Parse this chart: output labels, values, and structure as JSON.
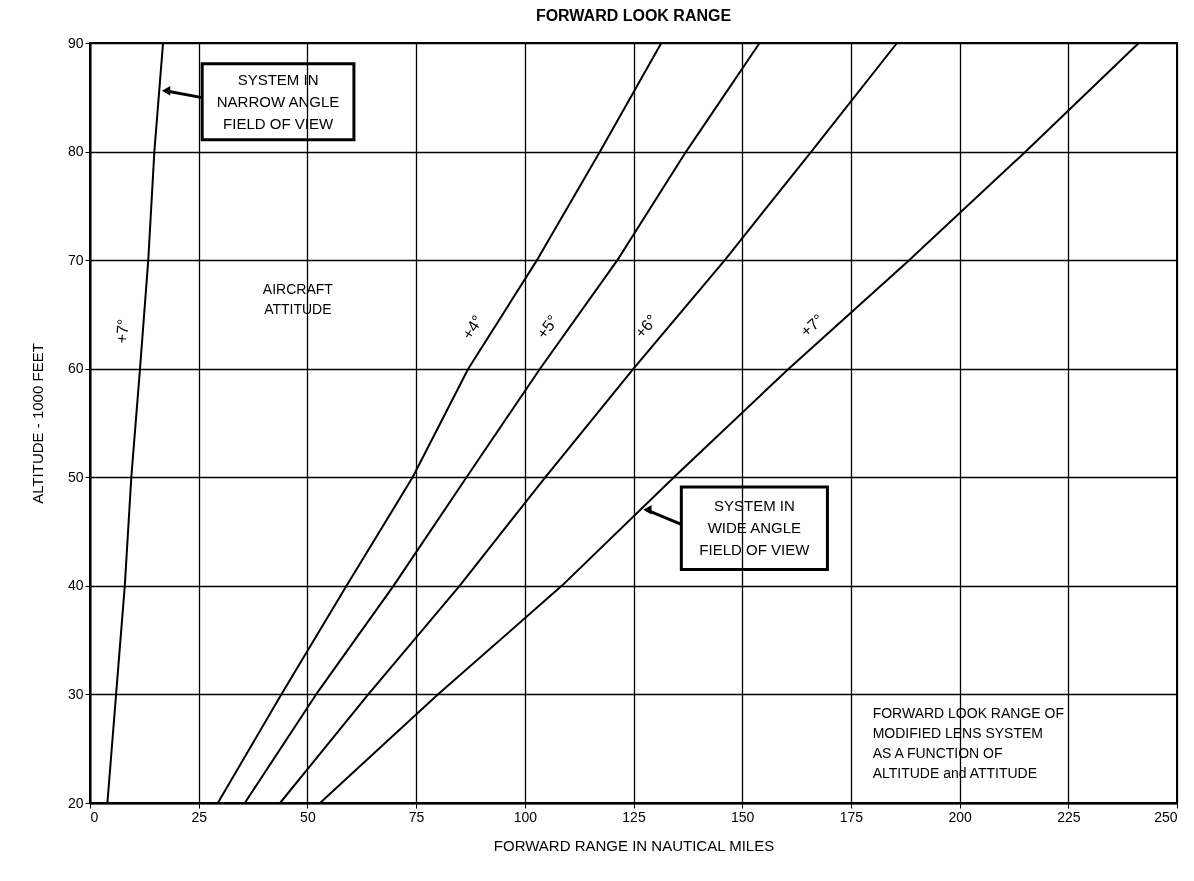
{
  "chart_data": {
    "type": "line",
    "title": "FORWARD LOOK RANGE",
    "xlabel": "FORWARD RANGE IN NAUTICAL MILES",
    "ylabel": "ALTITUDE - 1000 FEET",
    "series": [
      {
        "name": "+7°",
        "color": "#000000",
        "x": [
          4,
          6,
          8,
          9.5,
          11.5,
          13.4,
          14.8,
          16.8
        ],
        "values": [
          20,
          30,
          40,
          50,
          60,
          70,
          80,
          90
        ]
      },
      {
        "name": "+4°",
        "color": "#000000",
        "x": [
          29.4,
          44,
          59,
          74.2,
          87,
          102.8,
          117.3,
          131.4
        ],
        "values": [
          20,
          30,
          40,
          50,
          60,
          70,
          80,
          90
        ]
      },
      {
        "name": "+5°",
        "color": "#000000",
        "x": [
          35.6,
          52,
          69.8,
          86.6,
          103.5,
          121.3,
          137.1,
          154
        ],
        "values": [
          20,
          30,
          40,
          50,
          60,
          70,
          80,
          90
        ]
      },
      {
        "name": "+6°",
        "color": "#000000",
        "x": [
          43.7,
          64,
          85,
          104.7,
          125,
          146,
          165.9,
          185.6
        ],
        "values": [
          20,
          30,
          40,
          50,
          60,
          70,
          80,
          90
        ]
      },
      {
        "name": "+7°",
        "color": "#000000",
        "x": [
          52.9,
          80,
          108.5,
          134.3,
          160.7,
          188.4,
          215.2,
          241.2
        ],
        "values": [
          20,
          30,
          40,
          50,
          60,
          70,
          80,
          90
        ]
      }
    ],
    "annotations": [
      {
        "text": "SYSTEM IN\nNARROW ANGLE\nFIELD OF VIEW",
        "x": 15.9,
        "y": 85.6
      },
      {
        "text": "SYSTEM IN\nWIDE ANGLE\nFIELD OF VIEW",
        "x": 126.6,
        "y": 47
      },
      "AIRCRAFT\nATTITUDE",
      "FORWARD LOOK RANGE OF\nMODIFIED LENS SYSTEM\nAS A FUNCTION OF\nALTITUDE and ATTITUDE"
    ],
    "xlim": [
      0,
      250
    ],
    "xticks": [
      0,
      25,
      50,
      75,
      100,
      125,
      150,
      175,
      200,
      225,
      250
    ],
    "ylim": [
      20,
      90
    ],
    "yticks": [
      20,
      30,
      40,
      50,
      60,
      70,
      80,
      90
    ],
    "grid": true,
    "legend": false,
    "marker": "none",
    "line_style": "solid"
  }
}
